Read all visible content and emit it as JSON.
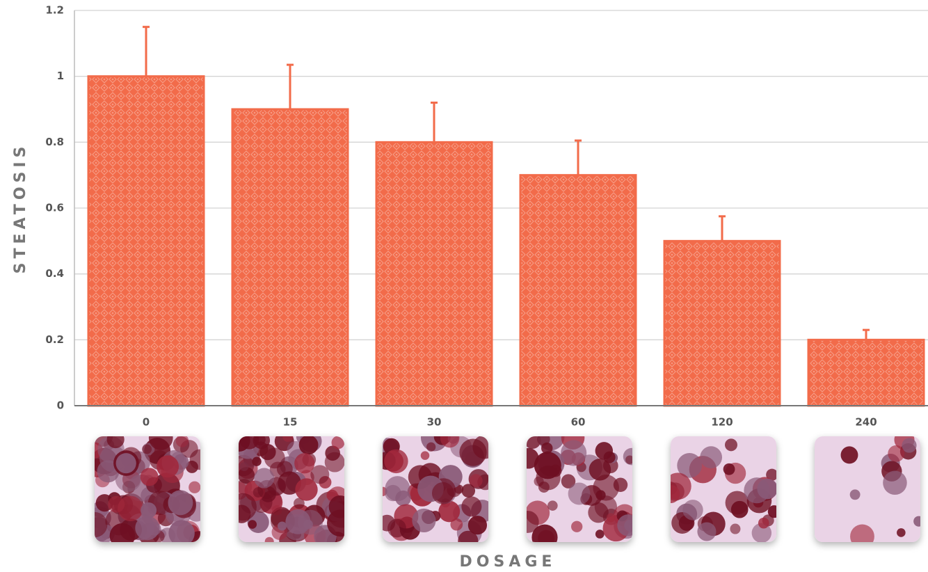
{
  "chart_data": {
    "type": "bar",
    "x_label": "DOSAGE",
    "y_label": "STEATOSIS",
    "categories": [
      "0",
      "15",
      "30",
      "60",
      "120",
      "240"
    ],
    "values": [
      1,
      0.9,
      0.8,
      0.7,
      0.5,
      0.2
    ],
    "errors": [
      0.15,
      0.135,
      0.12,
      0.105,
      0.075,
      0.03
    ],
    "color": "#f26b4a",
    "ylim": [
      0,
      1.2
    ],
    "yticks": [
      0,
      0.2,
      0.4,
      0.6,
      0.8,
      1,
      1.2
    ],
    "grid": true
  }
}
